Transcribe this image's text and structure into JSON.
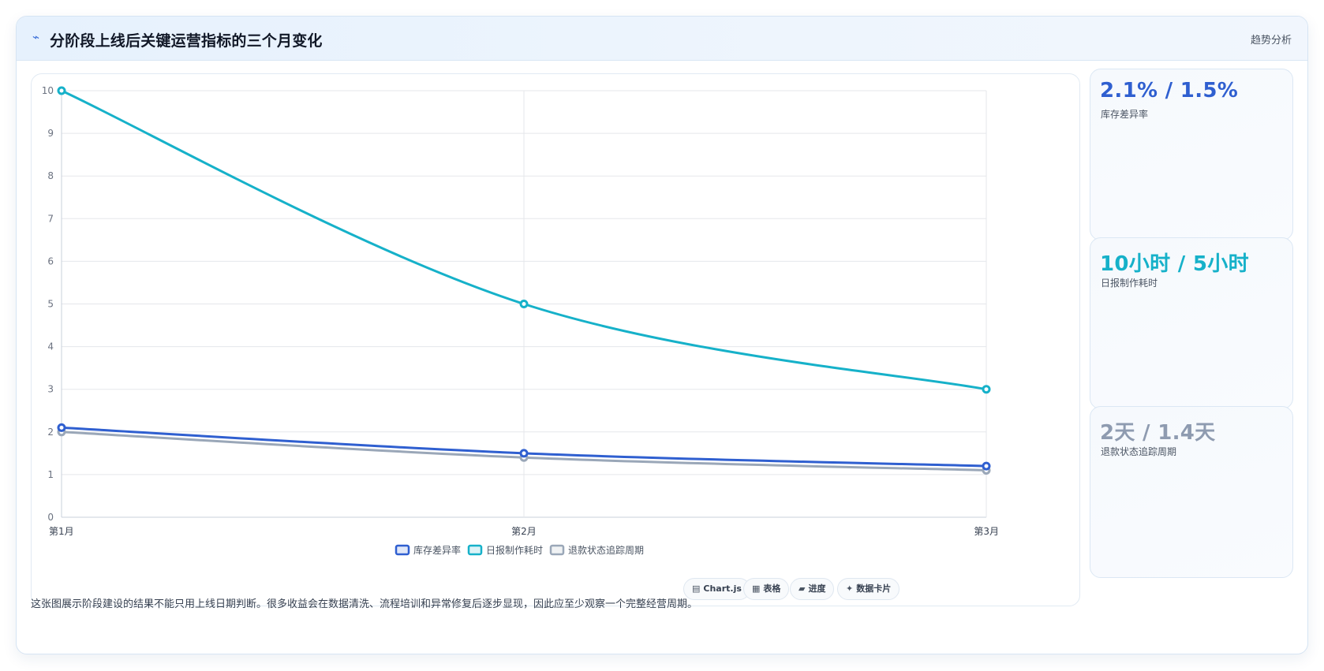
{
  "header": {
    "icon": "⌁",
    "title": "分阶段上线后关键运营指标的三个月变化",
    "link": "趋势分析"
  },
  "chart_data": {
    "type": "line",
    "title": "",
    "xlabel": "",
    "ylabel": "",
    "categories": [
      "第1月",
      "第2月",
      "第3月"
    ],
    "ylim": [
      0,
      10
    ],
    "yticks": [
      "0",
      "1",
      "2",
      "3",
      "4",
      "5",
      "6",
      "7",
      "8",
      "9",
      "10"
    ],
    "grid": true,
    "legend_position": "bottom",
    "series": [
      {
        "name": "库存差异率",
        "values": [
          2.1,
          1.5,
          1.2
        ],
        "color": "#2f5fd0"
      },
      {
        "name": "日报制作耗时",
        "values": [
          10,
          5,
          3
        ],
        "color": "#16b1c9"
      },
      {
        "name": "退款状态追踪周期",
        "values": [
          2,
          1.4,
          1.1
        ],
        "color": "#9aa7b8"
      }
    ]
  },
  "kpis": [
    {
      "value": "2.1% / 1.5%",
      "label": "库存差异率",
      "color": "#2f5fd0"
    },
    {
      "value": "10小时 / 5小时",
      "label": "日报制作耗时",
      "color": "#16b1c9"
    },
    {
      "value": "2天 / 1.4天",
      "label": "退款状态追踪周期",
      "color": "#8e9bb0"
    }
  ],
  "footer": {
    "text": "这张图展示阶段建设的结果不能只用上线日期判断。很多收益会在数据清洗、流程培训和异常修复后逐步显现，因此应至少观察一个完整经营周期。",
    "chips": [
      {
        "icon": "▤",
        "label": "Chart.js"
      },
      {
        "icon": "▦",
        "label": "表格"
      },
      {
        "icon": "▰",
        "label": "进度"
      },
      {
        "icon": "✦",
        "label": "数据卡片"
      }
    ]
  }
}
